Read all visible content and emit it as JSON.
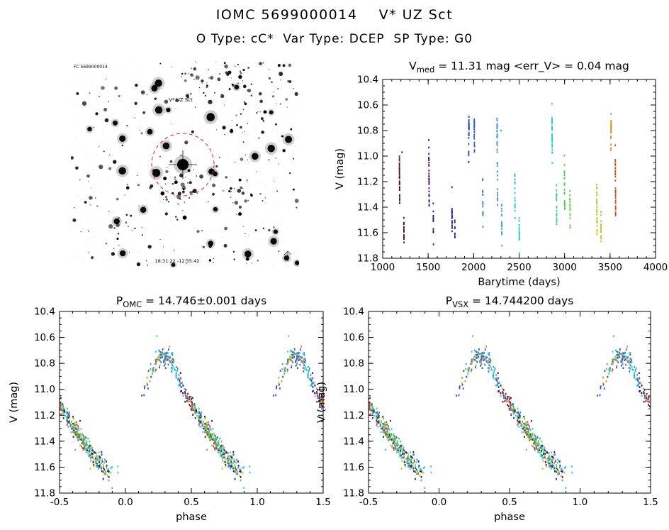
{
  "page": {
    "title": "IOMC 5699000014    V* UZ Sct",
    "subtitle": "O Type: cC*  Var Type: DCEP  SP Type: G0"
  },
  "object": {
    "iomc_id": "5699000014",
    "name": "V* UZ Sct",
    "o_type": "cC*",
    "var_type": "DCEP",
    "sp_type": "G0"
  },
  "finder": {
    "annotation_topleft": "FC 5699000014",
    "annotation_target": "V* UZ Sct",
    "annotation_bottom": "18:31:22  -12:55:42",
    "circle_color": "#dd2222",
    "annotation_color_top": "#cc2020",
    "annotation_color_bottom": "#2233cc"
  },
  "chart_data": {
    "type": "scatter",
    "stats": {
      "v_med_mag": 11.31,
      "err_v_mag": 0.04,
      "p_omc_days": "14.746±0.001",
      "p_vsx_days": "14.744200"
    },
    "shared": {
      "period_days": 14.746,
      "t0": 1000,
      "template": [
        [
          0.0,
          11.5
        ],
        [
          0.05,
          11.32
        ],
        [
          0.1,
          11.12
        ],
        [
          0.15,
          10.97
        ],
        [
          0.2,
          10.85
        ],
        [
          0.25,
          10.77
        ],
        [
          0.3,
          10.74
        ],
        [
          0.35,
          10.78
        ],
        [
          0.4,
          10.9
        ],
        [
          0.45,
          11.02
        ],
        [
          0.5,
          11.12
        ],
        [
          0.55,
          11.2
        ],
        [
          0.6,
          11.28
        ],
        [
          0.65,
          11.36
        ],
        [
          0.7,
          11.43
        ],
        [
          0.75,
          11.5
        ],
        [
          0.8,
          11.56
        ],
        [
          0.85,
          11.62
        ],
        [
          0.9,
          11.66
        ],
        [
          0.95,
          11.63
        ],
        [
          1.0,
          11.5
        ]
      ],
      "epochs": [
        {
          "t": 1183.6,
          "span": 3.0,
          "n": 35,
          "color": "#55103d"
        },
        {
          "t": 1232.2,
          "span": 2.0,
          "n": 18,
          "color": "#4b0d46"
        },
        {
          "t": 1507.3,
          "span": 4.0,
          "n": 30,
          "color": "#3a0e70"
        },
        {
          "t": 1555.9,
          "span": 2.0,
          "n": 15,
          "color": "#300a80"
        },
        {
          "t": 1761.2,
          "span": 3.0,
          "n": 22,
          "color": "#1c1f9e"
        },
        {
          "t": 1793.3,
          "span": 1.5,
          "n": 10,
          "color": "#1b2cae"
        },
        {
          "t": 1945.5,
          "span": 4.0,
          "n": 32,
          "color": "#2449c8"
        },
        {
          "t": 2006.0,
          "span": 3.0,
          "n": 26,
          "color": "#2a5fd4"
        },
        {
          "t": 2099.3,
          "span": 3.0,
          "n": 18,
          "color": "#3379dc"
        },
        {
          "t": 2256.1,
          "span": 7.0,
          "n": 40,
          "color": "#3b93d2"
        },
        {
          "t": 2307.7,
          "span": 3.0,
          "n": 20,
          "color": "#37a6d4"
        },
        {
          "t": 2452.5,
          "span": 3.0,
          "n": 20,
          "color": "#2fc0da"
        },
        {
          "t": 2500.8,
          "span": 2.5,
          "n": 18,
          "color": "#26ccd8"
        },
        {
          "t": 2861.0,
          "span": 3.5,
          "n": 36,
          "color": "#1fd4c4"
        },
        {
          "t": 2910.3,
          "span": 3.0,
          "n": 20,
          "color": "#23d49a"
        },
        {
          "t": 2997.3,
          "span": 4.0,
          "n": 24,
          "color": "#3ecf52"
        },
        {
          "t": 3058.5,
          "span": 3.0,
          "n": 18,
          "color": "#63cc2e"
        },
        {
          "t": 3352.9,
          "span": 4.0,
          "n": 24,
          "color": "#a8cc1e"
        },
        {
          "t": 3399.5,
          "span": 2.5,
          "n": 16,
          "color": "#c6c614"
        },
        {
          "t": 3509.2,
          "span": 3.0,
          "n": 24,
          "color": "#e08b16"
        },
        {
          "t": 3556.4,
          "span": 5.0,
          "n": 30,
          "color": "#d4491a"
        }
      ],
      "extra_points": [
        {
          "t": 2861.5,
          "mag": 10.59,
          "color": "#1fd4c4"
        },
        {
          "t": 2302.1,
          "mag": 10.8,
          "color": "#37a6d4"
        },
        {
          "t": 2502.6,
          "mag": 11.76,
          "color": "#26ccd8"
        },
        {
          "t": 1212.9,
          "mag": 10.97,
          "color": "#55103d"
        }
      ]
    },
    "plots": {
      "timeseries": {
        "title_parts": [
          {
            "t": "V"
          },
          {
            "t": "med",
            "sub": true
          },
          {
            "t": " = 11.31 mag <err_V> = 0.04 mag"
          }
        ],
        "xlabel": "Barytime (days)",
        "ylabel": "V (mag)",
        "xlim": [
          1000,
          4000
        ],
        "ylim_bottom_top": [
          11.8,
          10.4
        ],
        "xticks": {
          "values": [
            1000,
            1500,
            2000,
            2500,
            3000,
            3500,
            4000
          ],
          "labels": [
            "1000",
            "1500",
            "2000",
            "2500",
            "3000",
            "3500",
            "4000"
          ]
        },
        "yticks": {
          "values": [
            10.4,
            10.6,
            10.8,
            11.0,
            11.2,
            11.4,
            11.6,
            11.8
          ],
          "labels": [
            "10.4",
            "10.6",
            "10.8",
            "11.0",
            "11.2",
            "11.4",
            "11.6",
            "11.8"
          ]
        },
        "xminor_step": 100,
        "yminor_step": 0.05
      },
      "phase_omc": {
        "title_parts": [
          {
            "t": "P"
          },
          {
            "t": "OMC",
            "sub": true
          },
          {
            "t": " = 14.746±0.001 days"
          }
        ],
        "xlabel": "phase",
        "ylabel": "V (mag)",
        "xlim": [
          -0.5,
          1.5
        ],
        "ylim_bottom_top": [
          11.8,
          10.4
        ],
        "xticks": {
          "values": [
            -0.5,
            0.0,
            0.5,
            1.0,
            1.5
          ],
          "labels": [
            "-0.5",
            "0.0",
            "0.5",
            "1.0",
            "1.5"
          ]
        },
        "yticks": {
          "values": [
            10.4,
            10.6,
            10.8,
            11.0,
            11.2,
            11.4,
            11.6,
            11.8
          ],
          "labels": [
            "10.4",
            "10.6",
            "10.8",
            "11.0",
            "11.2",
            "11.4",
            "11.6",
            "11.8"
          ]
        },
        "xminor_step": 0.1,
        "yminor_step": 0.05
      },
      "phase_vsx": {
        "title_parts": [
          {
            "t": "P"
          },
          {
            "t": "VSX",
            "sub": true
          },
          {
            "t": " = 14.744200 days"
          }
        ],
        "xlabel": "phase",
        "ylabel": "V (mag)",
        "xlim": [
          -0.5,
          1.5
        ],
        "ylim_bottom_top": [
          11.8,
          10.4
        ],
        "xticks": {
          "values": [
            -0.5,
            0.0,
            0.5,
            1.0,
            1.5
          ],
          "labels": [
            "-0.5",
            "0.0",
            "0.5",
            "1.0",
            "1.5"
          ]
        },
        "yticks": {
          "values": [
            10.4,
            10.6,
            10.8,
            11.0,
            11.2,
            11.4,
            11.6,
            11.8
          ],
          "labels": [
            "10.4",
            "10.6",
            "10.8",
            "11.0",
            "11.2",
            "11.4",
            "11.6",
            "11.8"
          ]
        },
        "xminor_step": 0.1,
        "yminor_step": 0.05
      }
    }
  }
}
